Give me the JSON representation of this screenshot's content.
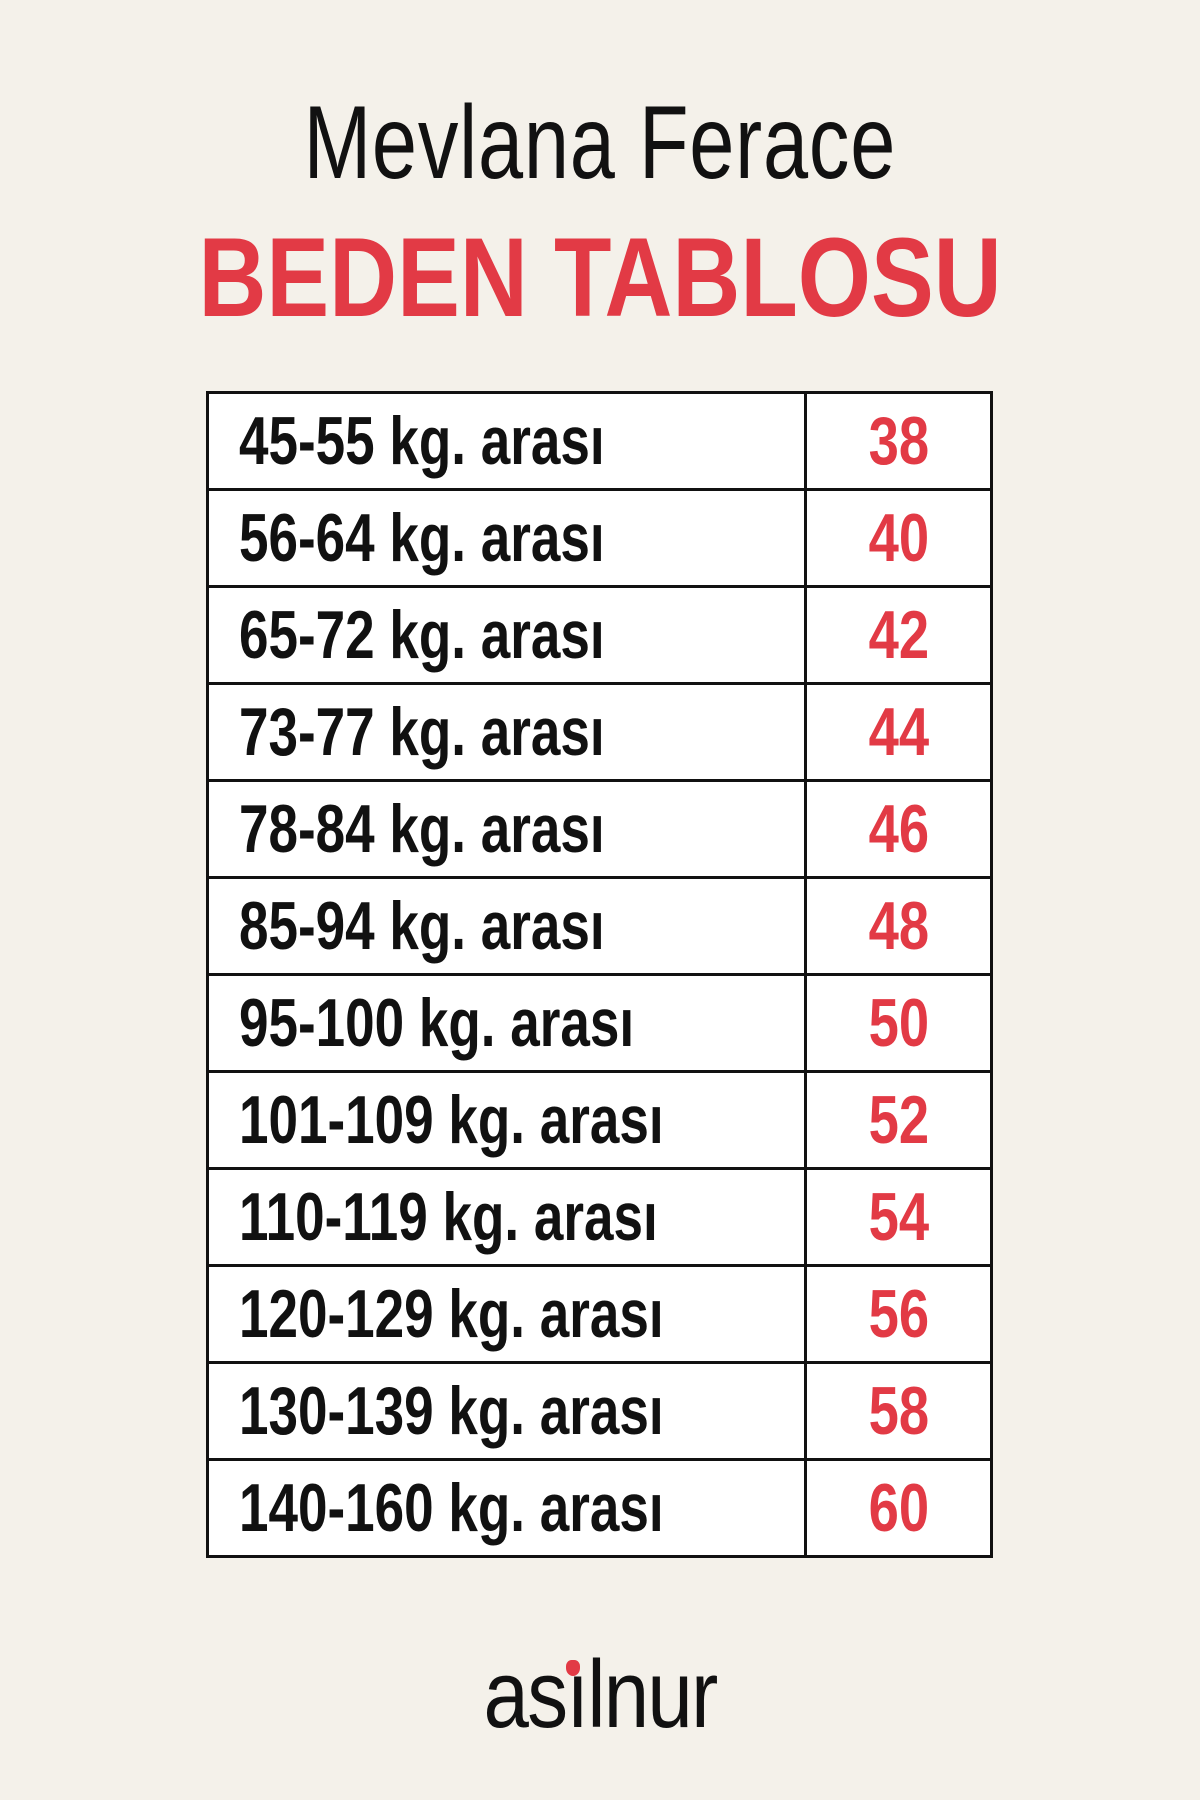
{
  "header": {
    "title": "Mevlana Ferace",
    "subtitle": "BEDEN TABLOSU"
  },
  "colors": {
    "accent": "#e23a45",
    "background": "#f4f1ea"
  },
  "table": {
    "rows": [
      {
        "weight": "45-55 kg. arası",
        "size": "38"
      },
      {
        "weight": "56-64 kg. arası",
        "size": "40"
      },
      {
        "weight": "65-72 kg. arası",
        "size": "42"
      },
      {
        "weight": "73-77 kg. arası",
        "size": "44"
      },
      {
        "weight": "78-84 kg. arası",
        "size": "46"
      },
      {
        "weight": "85-94 kg. arası",
        "size": "48"
      },
      {
        "weight": "95-100 kg. arası",
        "size": "50"
      },
      {
        "weight": "101-109 kg. arası",
        "size": "52"
      },
      {
        "weight": "110-119 kg. arası",
        "size": "54"
      },
      {
        "weight": "120-129 kg. arası",
        "size": "56"
      },
      {
        "weight": "130-139 kg. arası",
        "size": "58"
      },
      {
        "weight": "140-160 kg. arası",
        "size": "60"
      }
    ]
  },
  "footer": {
    "logo": "asılnur"
  }
}
